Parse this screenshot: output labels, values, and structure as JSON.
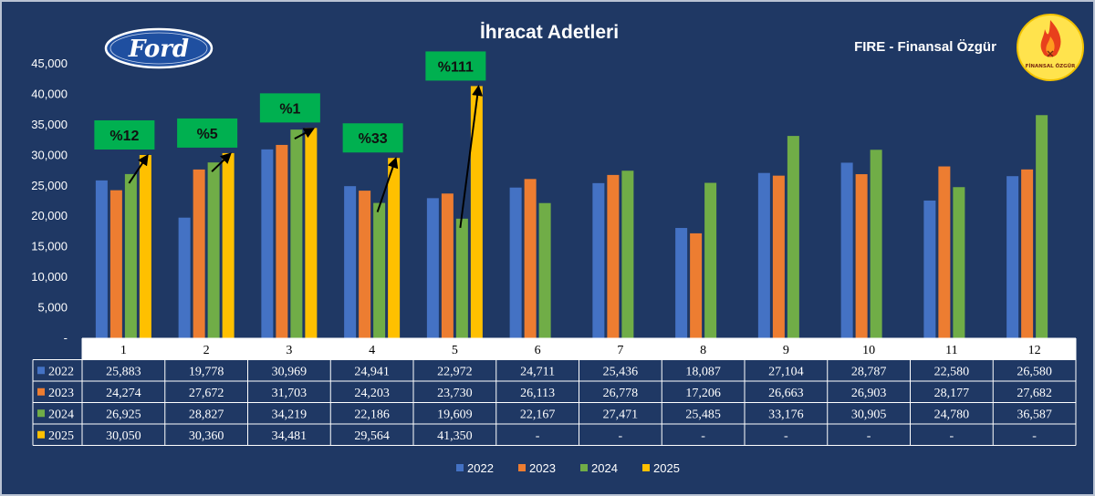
{
  "header": {
    "title": "İhracat Adetleri",
    "brand": "FIRE - Finansal Özgür",
    "ford_logo_text": "Ford",
    "badge_text": "FİNANSAL ÖZGÜR"
  },
  "colors": {
    "background": "#1f3864",
    "s2022": "#4472c4",
    "s2023": "#ed7d31",
    "s2024": "#70ad47",
    "s2025": "#ffc000",
    "callout": "#00b050"
  },
  "chart_data": {
    "type": "bar",
    "title": "İhracat Adetleri",
    "categories": [
      "1",
      "2",
      "3",
      "4",
      "5",
      "6",
      "7",
      "8",
      "9",
      "10",
      "11",
      "12"
    ],
    "ylim": [
      0,
      45000
    ],
    "yticks": [
      "-",
      "5,000",
      "10,000",
      "15,000",
      "20,000",
      "25,000",
      "30,000",
      "35,000",
      "40,000",
      "45,000"
    ],
    "legend_position": "bottom",
    "series": [
      {
        "name": "2022",
        "values": [
          25883,
          19778,
          30969,
          24941,
          22972,
          24711,
          25436,
          18087,
          27104,
          28787,
          22580,
          26580
        ],
        "labels": [
          "25,883",
          "19,778",
          "30,969",
          "24,941",
          "22,972",
          "24,711",
          "25,436",
          "18,087",
          "27,104",
          "28,787",
          "22,580",
          "26,580"
        ]
      },
      {
        "name": "2023",
        "values": [
          24274,
          27672,
          31703,
          24203,
          23730,
          26113,
          26778,
          17206,
          26663,
          26903,
          28177,
          27682
        ],
        "labels": [
          "24,274",
          "27,672",
          "31,703",
          "24,203",
          "23,730",
          "26,113",
          "26,778",
          "17,206",
          "26,663",
          "26,903",
          "28,177",
          "27,682"
        ]
      },
      {
        "name": "2024",
        "values": [
          26925,
          28827,
          34219,
          22186,
          19609,
          22167,
          27471,
          25485,
          33176,
          30905,
          24780,
          36587
        ],
        "labels": [
          "26,925",
          "28,827",
          "34,219",
          "22,186",
          "19,609",
          "22,167",
          "27,471",
          "25,485",
          "33,176",
          "30,905",
          "24,780",
          "36,587"
        ]
      },
      {
        "name": "2025",
        "values": [
          30050,
          30360,
          34481,
          29564,
          41350,
          null,
          null,
          null,
          null,
          null,
          null,
          null
        ],
        "labels": [
          "30,050",
          "30,360",
          "34,481",
          "29,564",
          "41,350",
          "-",
          "-",
          "-",
          "-",
          "-",
          "-",
          "-"
        ]
      }
    ],
    "annotations": [
      {
        "label": "%12",
        "category": "1"
      },
      {
        "label": "%5",
        "category": "2"
      },
      {
        "label": "%1",
        "category": "3"
      },
      {
        "label": "%33",
        "category": "4"
      },
      {
        "label": "%111",
        "category": "5"
      }
    ]
  }
}
